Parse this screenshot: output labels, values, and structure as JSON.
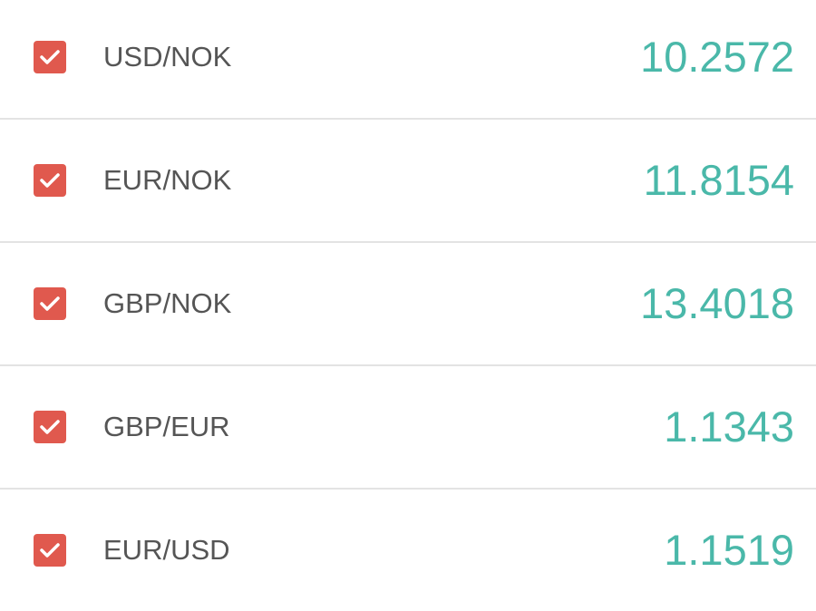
{
  "colors": {
    "checkbox": "#e0594e",
    "value": "#4ab8a9",
    "label": "#555555"
  },
  "rates": [
    {
      "pair": "USD/NOK",
      "value": "10.2572",
      "checked": true
    },
    {
      "pair": "EUR/NOK",
      "value": "11.8154",
      "checked": true
    },
    {
      "pair": "GBP/NOK",
      "value": "13.4018",
      "checked": true
    },
    {
      "pair": "GBP/EUR",
      "value": "1.1343",
      "checked": true
    },
    {
      "pair": "EUR/USD",
      "value": "1.1519",
      "checked": true
    }
  ]
}
